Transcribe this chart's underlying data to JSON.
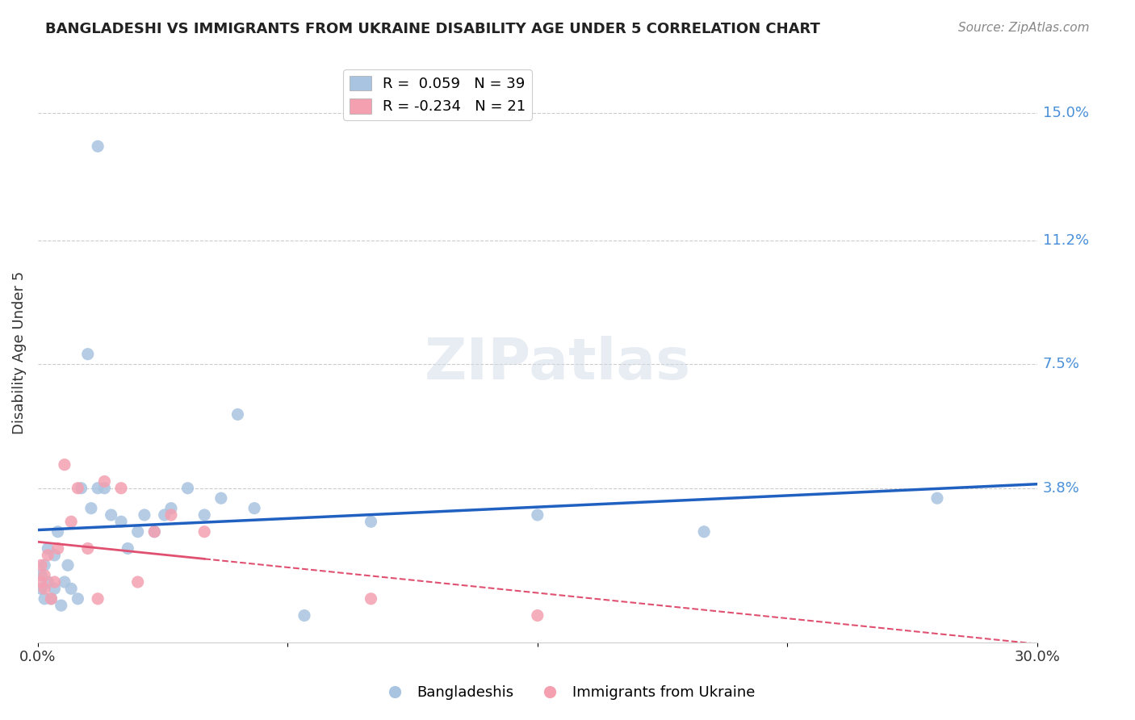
{
  "title": "BANGLADESHI VS IMMIGRANTS FROM UKRAINE DISABILITY AGE UNDER 5 CORRELATION CHART",
  "source": "Source: ZipAtlas.com",
  "ylabel": "Disability Age Under 5",
  "ytick_labels": [
    "15.0%",
    "11.2%",
    "7.5%",
    "3.8%"
  ],
  "ytick_values": [
    0.15,
    0.112,
    0.075,
    0.038
  ],
  "xlim": [
    0.0,
    0.3
  ],
  "ylim": [
    -0.008,
    0.165
  ],
  "legend_r_blue": "0.059",
  "legend_n_blue": "39",
  "legend_r_pink": "-0.234",
  "legend_n_pink": "21",
  "blue_color": "#a8c4e0",
  "pink_color": "#f4a0b0",
  "trendline_blue_color": "#2060c0",
  "trendline_pink_color": "#e05070",
  "background_color": "#ffffff",
  "watermark": "ZIPatlas",
  "blue_x": [
    0.001,
    0.001,
    0.002,
    0.002,
    0.003,
    0.003,
    0.004,
    0.005,
    0.005,
    0.006,
    0.007,
    0.008,
    0.009,
    0.01,
    0.012,
    0.013,
    0.015,
    0.016,
    0.018,
    0.018,
    0.02,
    0.022,
    0.025,
    0.027,
    0.03,
    0.032,
    0.035,
    0.038,
    0.04,
    0.045,
    0.05,
    0.055,
    0.06,
    0.065,
    0.08,
    0.1,
    0.15,
    0.2,
    0.27
  ],
  "blue_y": [
    0.008,
    0.012,
    0.005,
    0.015,
    0.01,
    0.02,
    0.005,
    0.008,
    0.018,
    0.025,
    0.003,
    0.01,
    0.015,
    0.008,
    0.005,
    0.038,
    0.078,
    0.032,
    0.038,
    0.14,
    0.038,
    0.03,
    0.028,
    0.02,
    0.025,
    0.03,
    0.025,
    0.03,
    0.032,
    0.038,
    0.03,
    0.035,
    0.06,
    0.032,
    0.0,
    0.028,
    0.03,
    0.025,
    0.035
  ],
  "pink_x": [
    0.001,
    0.001,
    0.002,
    0.002,
    0.003,
    0.004,
    0.005,
    0.006,
    0.008,
    0.01,
    0.012,
    0.015,
    0.018,
    0.02,
    0.025,
    0.03,
    0.035,
    0.04,
    0.05,
    0.1,
    0.15
  ],
  "pink_y": [
    0.01,
    0.015,
    0.012,
    0.008,
    0.018,
    0.005,
    0.01,
    0.02,
    0.045,
    0.028,
    0.038,
    0.02,
    0.005,
    0.04,
    0.038,
    0.01,
    0.025,
    0.03,
    0.025,
    0.005,
    0.0
  ]
}
